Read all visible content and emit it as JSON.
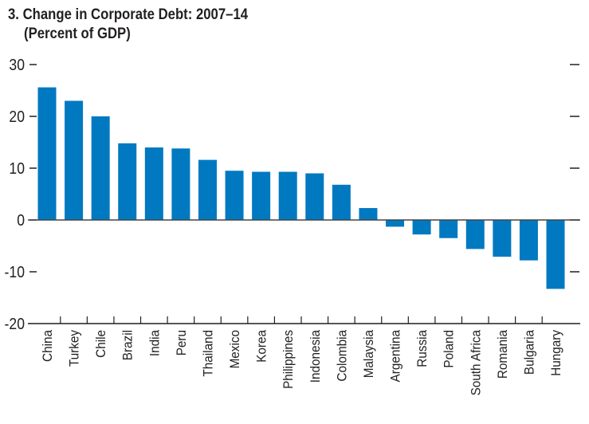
{
  "chart_data": {
    "type": "bar",
    "title": "3. Change in Corporate Debt: 2007–14",
    "subtitle": "(Percent of GDP)",
    "xlabel": "",
    "ylabel": "",
    "ylim": [
      -20,
      30
    ],
    "yticks": [
      30,
      20,
      10,
      0,
      -10,
      -20
    ],
    "grid": false,
    "bar_color": "#0079c1",
    "categories": [
      "China",
      "Turkey",
      "Chile",
      "Brazil",
      "India",
      "Peru",
      "Thailand",
      "Mexico",
      "Korea",
      "Philippines",
      "Indonesia",
      "Colombia",
      "Malaysia",
      "Argentina",
      "Russia",
      "Poland",
      "South Africa",
      "Romania",
      "Bulgaria",
      "Hungary"
    ],
    "values": [
      25.6,
      23.0,
      20.0,
      14.8,
      14.0,
      13.8,
      11.6,
      9.5,
      9.3,
      9.3,
      9.0,
      6.8,
      2.3,
      -1.3,
      -2.8,
      -3.5,
      -5.6,
      -7.1,
      -7.8,
      -13.3
    ]
  }
}
